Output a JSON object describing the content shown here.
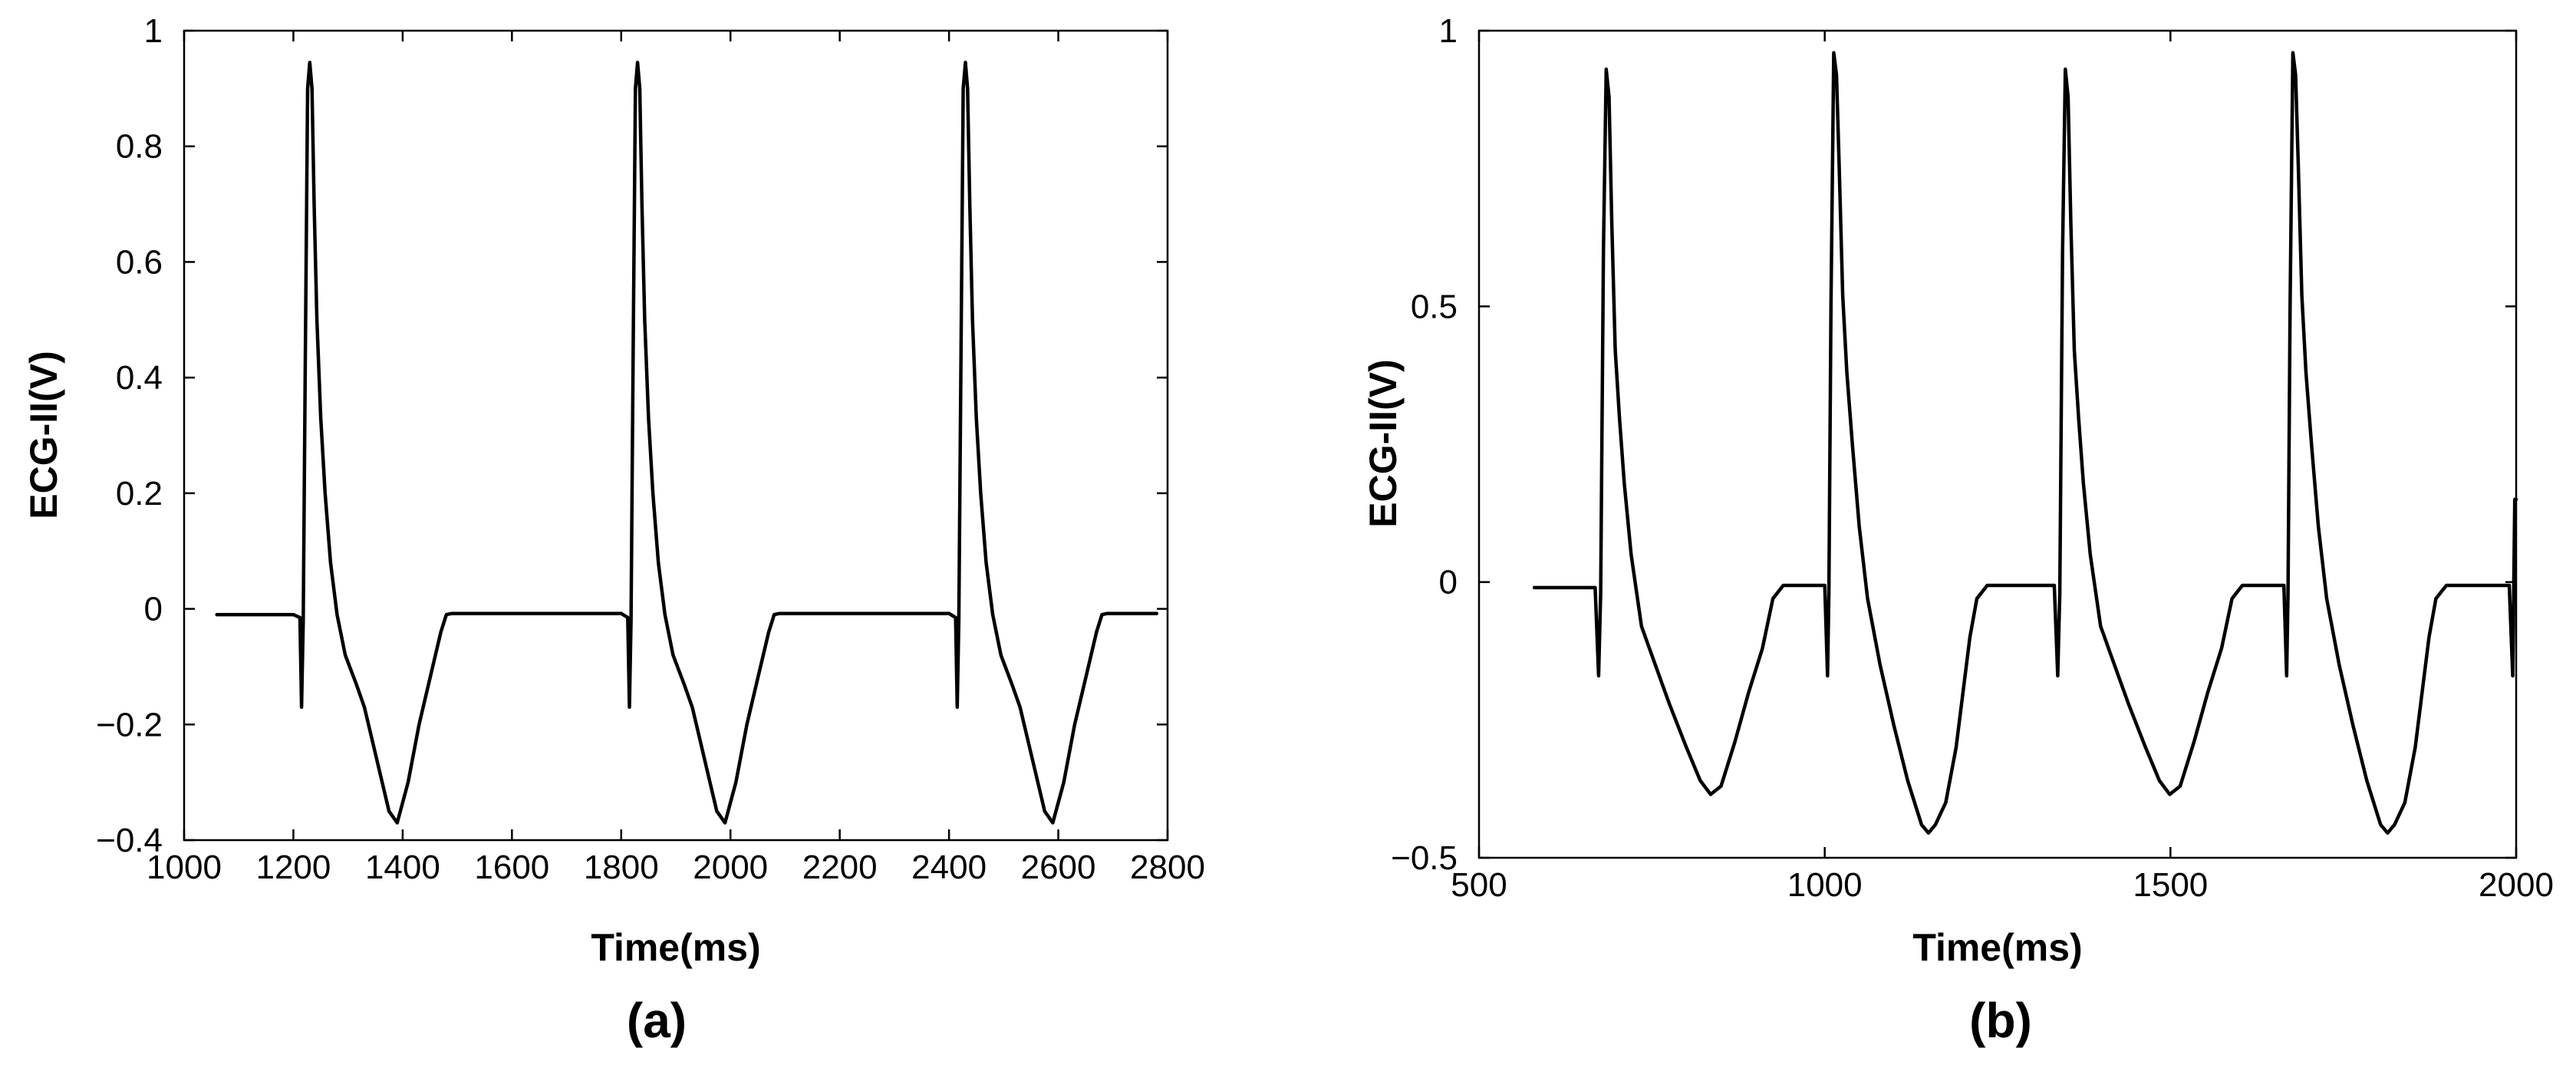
{
  "chart_data": [
    {
      "type": "line",
      "panel_label": "(a)",
      "xlabel": "Time(ms)",
      "ylabel": "ECG-II(V)",
      "xlim": [
        1000,
        2800
      ],
      "ylim": [
        -0.4,
        1
      ],
      "xticks": [
        "1000",
        "1200",
        "1400",
        "1600",
        "1800",
        "2000",
        "2200",
        "2400",
        "2600",
        "2800"
      ],
      "yticks": [
        "−0.4",
        "−0.2",
        "0",
        "0.2",
        "0.4",
        "0.6",
        "0.8",
        "1"
      ],
      "xtick_values": [
        1000,
        1200,
        1400,
        1600,
        1800,
        2000,
        2200,
        2400,
        2600,
        2800
      ],
      "ytick_values": [
        -0.4,
        -0.2,
        0,
        0.2,
        0.4,
        0.6,
        0.8,
        1
      ],
      "grid": false,
      "series": [
        {
          "x": [
            1060,
            1200,
            1212,
            1215,
            1218,
            1222,
            1226,
            1230,
            1234,
            1238,
            1243,
            1250,
            1258,
            1268,
            1280,
            1295,
            1315,
            1330,
            1345,
            1360,
            1375,
            1390,
            1410,
            1430,
            1450,
            1470,
            1480,
            1490,
            1500,
            1550,
            1600,
            1650,
            1700,
            1750,
            1800,
            1812,
            1815,
            1818,
            1822,
            1826,
            1830,
            1834,
            1838,
            1843,
            1850,
            1858,
            1868,
            1880,
            1895,
            1915,
            1930,
            1945,
            1960,
            1975,
            1990,
            2010,
            2030,
            2050,
            2070,
            2080,
            2090,
            2100,
            2150,
            2200,
            2250,
            2300,
            2350,
            2400,
            2412,
            2415,
            2418,
            2422,
            2426,
            2430,
            2434,
            2438,
            2443,
            2450,
            2458,
            2468,
            2480,
            2495,
            2515,
            2530,
            2545,
            2560,
            2575,
            2590,
            2610,
            2630,
            2650,
            2670,
            2680,
            2690,
            2700,
            2780
          ],
          "y": [
            -0.01,
            -0.01,
            -0.015,
            -0.17,
            -0.02,
            0.45,
            0.9,
            0.945,
            0.9,
            0.7,
            0.5,
            0.33,
            0.2,
            0.08,
            -0.01,
            -0.08,
            -0.13,
            -0.17,
            -0.23,
            -0.29,
            -0.35,
            -0.37,
            -0.3,
            -0.2,
            -0.12,
            -0.04,
            -0.01,
            -0.008,
            -0.008,
            -0.008,
            -0.008,
            -0.008,
            -0.008,
            -0.008,
            -0.008,
            -0.015,
            -0.17,
            -0.02,
            0.45,
            0.9,
            0.945,
            0.9,
            0.7,
            0.5,
            0.33,
            0.2,
            0.08,
            -0.01,
            -0.08,
            -0.13,
            -0.17,
            -0.23,
            -0.29,
            -0.35,
            -0.37,
            -0.3,
            -0.2,
            -0.12,
            -0.04,
            -0.01,
            -0.008,
            -0.008,
            -0.008,
            -0.008,
            -0.008,
            -0.008,
            -0.008,
            -0.008,
            -0.015,
            -0.17,
            -0.02,
            0.45,
            0.9,
            0.945,
            0.9,
            0.7,
            0.5,
            0.33,
            0.2,
            0.08,
            -0.01,
            -0.08,
            -0.13,
            -0.17,
            -0.23,
            -0.29,
            -0.35,
            -0.37,
            -0.3,
            -0.2,
            -0.12,
            -0.04,
            -0.01,
            -0.008,
            -0.008,
            -0.008
          ]
        }
      ]
    },
    {
      "type": "line",
      "panel_label": "(b)",
      "xlabel": "Time(ms)",
      "ylabel": "ECG-II(V)",
      "xlim": [
        500,
        2000
      ],
      "ylim": [
        -0.5,
        1
      ],
      "xticks": [
        "500",
        "1000",
        "1500",
        "2000"
      ],
      "yticks": [
        "−0.5",
        "0",
        "0.5",
        "1"
      ],
      "xtick_values": [
        500,
        1000,
        1500,
        2000
      ],
      "ytick_values": [
        -0.5,
        0,
        0.5,
        1
      ],
      "grid": false,
      "series": [
        {
          "x": [
            580,
            668,
            673,
            676,
            680,
            684,
            688,
            692,
            697,
            703,
            710,
            720,
            735,
            755,
            775,
            800,
            820,
            835,
            850,
            870,
            890,
            910,
            925,
            940,
            960,
            990,
            1000,
            1004,
            1006,
            1009,
            1013,
            1017,
            1021,
            1026,
            1032,
            1040,
            1050,
            1062,
            1080,
            1100,
            1120,
            1140,
            1150,
            1160,
            1175,
            1190,
            1200,
            1210,
            1220,
            1235,
            1300,
            1332,
            1337,
            1340,
            1344,
            1348,
            1352,
            1356,
            1361,
            1367,
            1374,
            1384,
            1399,
            1419,
            1439,
            1464,
            1484,
            1499,
            1514,
            1534,
            1554,
            1574,
            1589,
            1604,
            1624,
            1654,
            1664,
            1668,
            1670,
            1673,
            1677,
            1681,
            1685,
            1690,
            1696,
            1704,
            1714,
            1726,
            1744,
            1764,
            1784,
            1804,
            1814,
            1824,
            1839,
            1854,
            1864,
            1874,
            1884,
            1899,
            1990,
            1995,
            1998,
            2000
          ],
          "y": [
            -0.01,
            -0.01,
            -0.17,
            -0.02,
            0.6,
            0.93,
            0.88,
            0.65,
            0.42,
            0.3,
            0.18,
            0.05,
            -0.08,
            -0.15,
            -0.22,
            -0.3,
            -0.36,
            -0.385,
            -0.37,
            -0.29,
            -0.2,
            -0.12,
            -0.03,
            -0.006,
            -0.006,
            -0.006,
            -0.006,
            -0.17,
            -0.02,
            0.5,
            0.96,
            0.92,
            0.75,
            0.52,
            0.38,
            0.25,
            0.1,
            -0.03,
            -0.15,
            -0.26,
            -0.36,
            -0.44,
            -0.455,
            -0.44,
            -0.4,
            -0.3,
            -0.2,
            -0.1,
            -0.03,
            -0.006,
            -0.006,
            -0.006,
            -0.17,
            -0.02,
            0.6,
            0.93,
            0.88,
            0.65,
            0.42,
            0.3,
            0.18,
            0.05,
            -0.08,
            -0.15,
            -0.22,
            -0.3,
            -0.36,
            -0.385,
            -0.37,
            -0.29,
            -0.2,
            -0.12,
            -0.03,
            -0.006,
            -0.006,
            -0.006,
            -0.006,
            -0.17,
            -0.02,
            0.5,
            0.96,
            0.92,
            0.75,
            0.52,
            0.38,
            0.25,
            0.1,
            -0.03,
            -0.15,
            -0.26,
            -0.36,
            -0.44,
            -0.455,
            -0.44,
            -0.4,
            -0.3,
            -0.2,
            -0.1,
            -0.03,
            -0.006,
            -0.006,
            -0.17,
            0.15,
            0.15
          ]
        }
      ]
    }
  ]
}
